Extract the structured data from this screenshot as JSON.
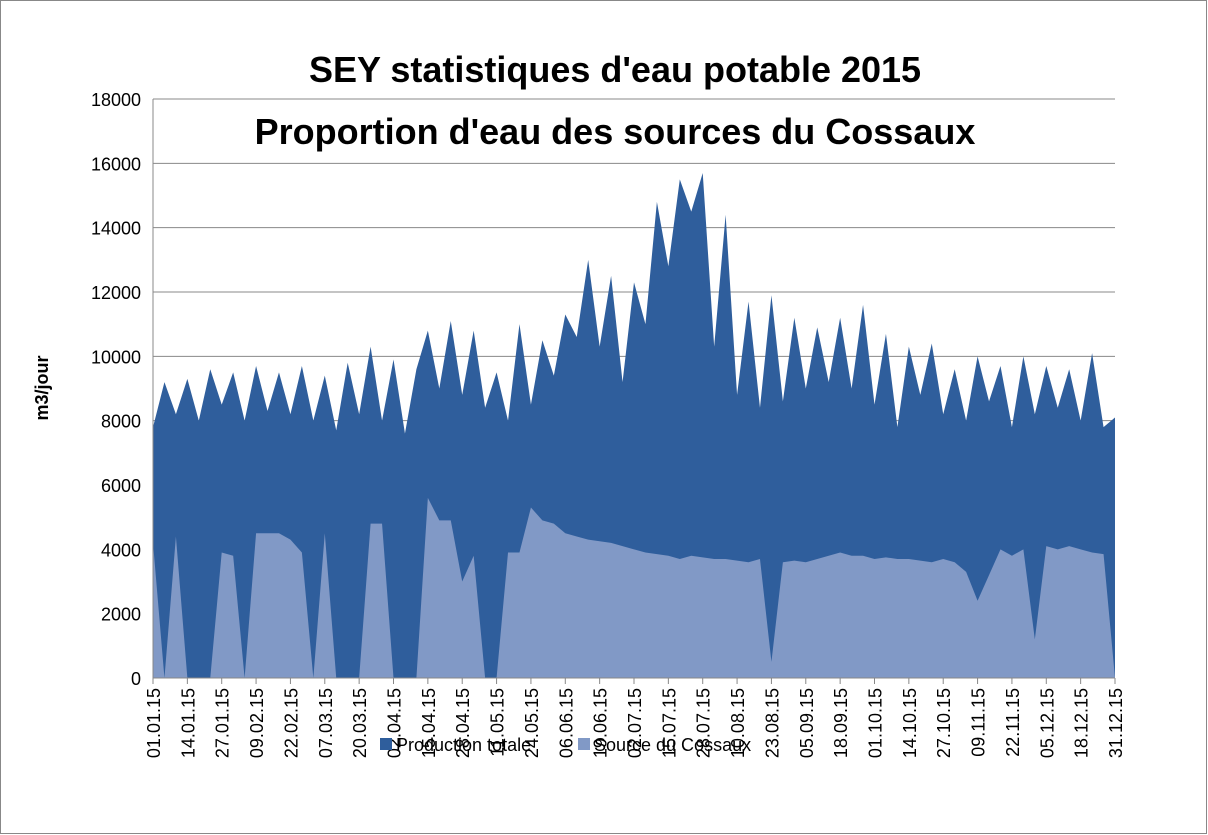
{
  "chart_data": {
    "type": "area",
    "title": "SEY statistiques d'eau potable 2015",
    "subtitle": "Proportion d'eau des sources du Cossaux",
    "y_label": "m3/jour",
    "categories": [
      "01.01.15",
      null,
      null,
      "14.01.15",
      null,
      null,
      "27.01.15",
      null,
      null,
      "09.02.15",
      null,
      null,
      "22.02.15",
      null,
      null,
      "07.03.15",
      null,
      null,
      "20.03.15",
      null,
      null,
      "02.04.15",
      null,
      null,
      "15.04.15",
      null,
      null,
      "28.04.15",
      null,
      null,
      "11.05.15",
      null,
      null,
      "24.05.15",
      null,
      null,
      "06.06.15",
      null,
      null,
      "19.06.15",
      null,
      null,
      "02.07.15",
      null,
      null,
      "15.07.15",
      null,
      null,
      "28.07.15",
      null,
      null,
      "10.08.15",
      null,
      null,
      "23.08.15",
      null,
      null,
      "05.09.15",
      null,
      null,
      "18.09.15",
      null,
      null,
      "01.10.15",
      null,
      null,
      "14.10.15",
      null,
      null,
      "27.10.15",
      null,
      null,
      "09.11.15",
      null,
      null,
      "22.11.15",
      null,
      null,
      "05.12.15",
      null,
      null,
      "18.12.15",
      null,
      null,
      "31.12.15"
    ],
    "series": [
      {
        "name": "Production totale",
        "color": "#2f5e9c",
        "values": [
          7800,
          9200,
          8200,
          9300,
          8000,
          9600,
          8500,
          9500,
          8000,
          9700,
          8300,
          9500,
          8200,
          9700,
          8000,
          9400,
          7700,
          9800,
          8200,
          10300,
          8000,
          9900,
          7600,
          9600,
          10800,
          9000,
          11100,
          8800,
          10800,
          8400,
          9500,
          8000,
          11000,
          8500,
          10500,
          9400,
          11300,
          10600,
          13000,
          10300,
          12500,
          9200,
          12300,
          11000,
          14800,
          12800,
          15500,
          14500,
          15700,
          10300,
          14400,
          8800,
          11700,
          8400,
          11900,
          8600,
          11200,
          9000,
          10900,
          9200,
          11200,
          9000,
          11600,
          8500,
          10700,
          7800,
          10300,
          8800,
          10400,
          8200,
          9600,
          8000,
          10000,
          8600,
          9700,
          7800,
          10000,
          8200,
          9700,
          8400,
          9600,
          8000,
          10100,
          7800,
          8100
        ]
      },
      {
        "name": "Source du Cossaux",
        "color": "#8199c6",
        "values": [
          4200,
          0,
          4400,
          0,
          0,
          0,
          3900,
          3800,
          0,
          4500,
          4500,
          4500,
          4300,
          3900,
          0,
          4500,
          0,
          0,
          0,
          4800,
          4800,
          0,
          0,
          0,
          5600,
          4900,
          4900,
          3000,
          3800,
          0,
          0,
          3900,
          3900,
          5300,
          4900,
          4800,
          4500,
          4400,
          4300,
          4250,
          4200,
          4100,
          4000,
          3900,
          3850,
          3800,
          3700,
          3800,
          3750,
          3700,
          3700,
          3650,
          3600,
          3700,
          500,
          3600,
          3650,
          3600,
          3700,
          3800,
          3900,
          3800,
          3800,
          3700,
          3750,
          3700,
          3700,
          3650,
          3600,
          3700,
          3600,
          3300,
          2400,
          3200,
          4000,
          3800,
          4000,
          1200,
          4100,
          4000,
          4100,
          4000,
          3900,
          3850,
          0
        ]
      }
    ],
    "ylim": [
      0,
      18000
    ],
    "yticks": [
      0,
      2000,
      4000,
      6000,
      8000,
      10000,
      12000,
      14000,
      16000,
      18000
    ],
    "grid": true,
    "legend": "bottom"
  }
}
